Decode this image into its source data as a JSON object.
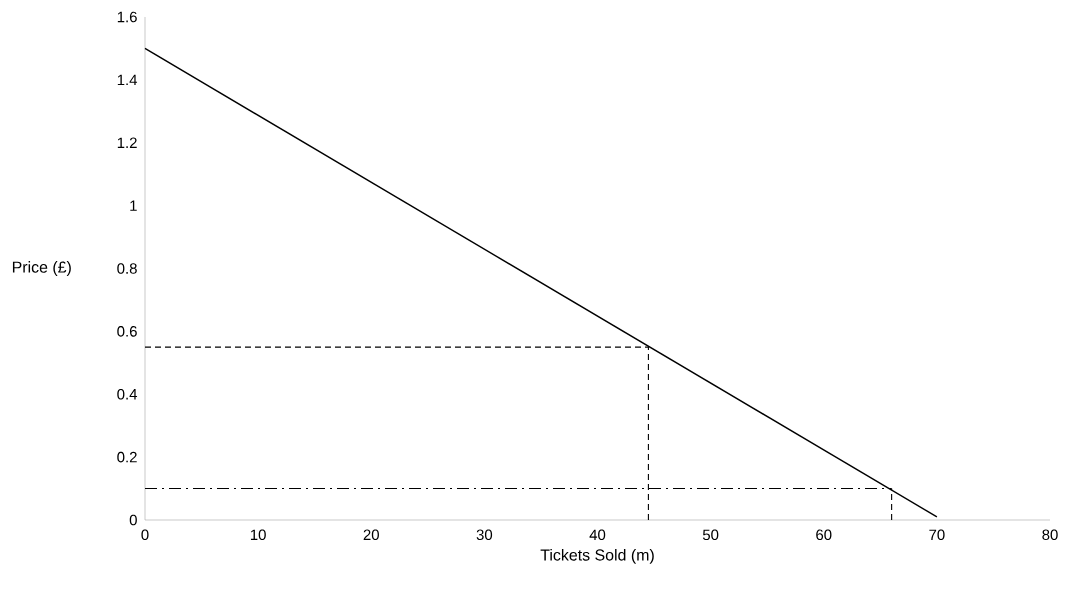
{
  "chart_data": {
    "type": "line",
    "xlabel": "Tickets Sold (m)",
    "ylabel": "Price (£)",
    "xlim": [
      0,
      80
    ],
    "xticks": [
      0,
      10,
      20,
      30,
      40,
      50,
      60,
      70,
      80
    ],
    "ylim": [
      0,
      1.6
    ],
    "yticks": [
      0,
      0.2,
      0.4,
      0.6,
      0.8,
      {
        "value": 1,
        "label": "1"
      },
      1.2,
      1.4,
      1.6
    ],
    "series": [
      {
        "color": "#000000",
        "line_style": "solid",
        "x": [
          0,
          70
        ],
        "values": [
          1.5,
          0.01
        ]
      },
      {
        "color": "#000000",
        "line_style": "dashed",
        "x": [
          0,
          44.5
        ],
        "values": [
          0.55,
          0.55
        ]
      },
      {
        "color": "#000000",
        "line_style": "dashed",
        "x": [
          44.5,
          44.5
        ],
        "values": [
          0,
          0.55
        ]
      },
      {
        "color": "#000000",
        "line_style": "dashdot",
        "x": [
          0,
          66
        ],
        "values": [
          0.1,
          0.1
        ]
      },
      {
        "color": "#000000",
        "line_style": "dashed",
        "x": [
          66,
          66
        ],
        "values": [
          0,
          0.1
        ]
      }
    ]
  }
}
